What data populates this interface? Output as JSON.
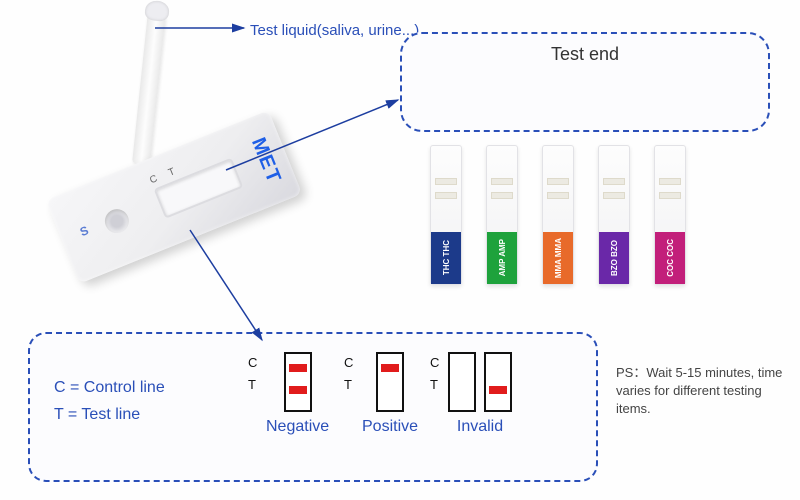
{
  "labels": {
    "test_liquid": "Test liquid(saliva, urine...)",
    "test_end": "Test end",
    "control_line": "C = Control line",
    "test_line": "T = Test line",
    "negative": "Negative",
    "positive": "Positive",
    "invalid": "Invalid",
    "ps": "PS：Wait 5-15 minutes, time varies for different testing items."
  },
  "device": {
    "brand": "MET",
    "marks": {
      "sample": "S",
      "control": "C",
      "test": "T"
    }
  },
  "colors": {
    "dash_border": "#2a4fb8",
    "result_line": "#e11c1c",
    "arrow": "#1d3ea0"
  },
  "strips": [
    {
      "tag": "THC",
      "color": "#1c3a8a"
    },
    {
      "tag": "AMP",
      "color": "#1ea23c"
    },
    {
      "tag": "MMA",
      "color": "#e86a2a"
    },
    {
      "tag": "BZO",
      "color": "#6a28a8"
    },
    {
      "tag": "COC",
      "color": "#c21f7a"
    }
  ],
  "results": {
    "negative": {
      "C": true,
      "T": true
    },
    "positive": {
      "C": true,
      "T": false
    },
    "invalid": [
      {
        "C": false,
        "T": false
      },
      {
        "C": false,
        "T": true
      }
    ]
  },
  "ct": {
    "c": "C",
    "t": "T"
  }
}
